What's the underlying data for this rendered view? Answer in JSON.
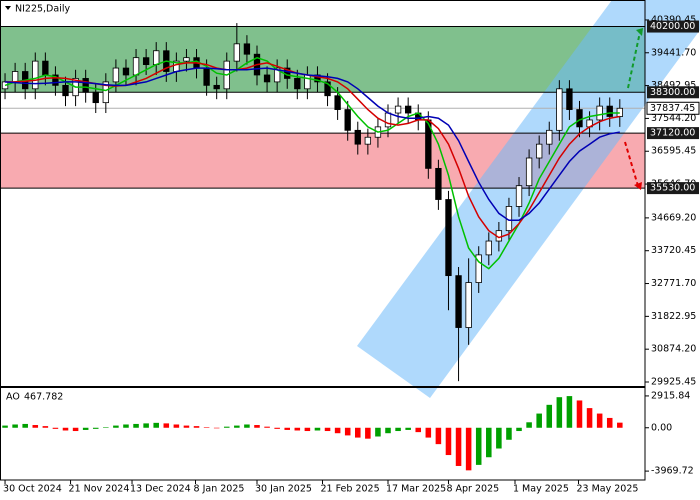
{
  "chart_data": {
    "type": "candlestick",
    "title": "NI225,Daily",
    "open": [
      38400,
      38600,
      38900,
      38400,
      39200,
      38800,
      38500,
      38200,
      38700,
      38300,
      38000,
      38600,
      39000,
      38800,
      39300,
      39100,
      39500,
      38900,
      39200,
      39300,
      39000,
      38500,
      38400,
      39200,
      39700,
      39400,
      38800,
      38600,
      39000,
      38700,
      38400,
      38800,
      38600,
      38200,
      37800,
      37200,
      36800,
      37000,
      37300,
      37700,
      37900,
      37700,
      37500,
      36100,
      35200,
      33000,
      31500,
      32800,
      33600,
      34000,
      34300,
      35000,
      35600,
      36400,
      36800,
      37200,
      38400,
      37800,
      37300,
      37500,
      37900,
      37600
    ],
    "high": [
      38850,
      39150,
      39150,
      39450,
      39450,
      39050,
      38750,
      38950,
      38950,
      38550,
      38850,
      39250,
      39250,
      39550,
      39550,
      39750,
      39750,
      39450,
      39550,
      39550,
      39250,
      38750,
      39450,
      40300,
      39950,
      39650,
      39050,
      39250,
      39250,
      38950,
      39050,
      39050,
      38850,
      38450,
      38050,
      37450,
      37250,
      37550,
      37950,
      38150,
      38150,
      37950,
      37750,
      36350,
      35450,
      33250,
      33500,
      33850,
      34250,
      34550,
      35250,
      35850,
      36650,
      37050,
      37450,
      38650,
      38650,
      38050,
      37750,
      38150,
      38150,
      38100
    ],
    "low": [
      38100,
      38300,
      38100,
      38100,
      38500,
      38200,
      37900,
      37900,
      38000,
      37700,
      37700,
      38300,
      38500,
      38500,
      38800,
      38800,
      38600,
      38600,
      38900,
      38700,
      38200,
      38100,
      38100,
      38900,
      39100,
      38500,
      38300,
      38300,
      38400,
      38100,
      38100,
      38300,
      37900,
      37500,
      36900,
      36500,
      36500,
      36700,
      37000,
      37400,
      37400,
      37200,
      35800,
      34900,
      32000,
      29950,
      31000,
      32500,
      33300,
      33700,
      34000,
      34700,
      35300,
      36100,
      36500,
      36900,
      37500,
      37000,
      37000,
      37200,
      37300,
      37300
    ],
    "close": [
      38600,
      38900,
      38400,
      39200,
      38800,
      38500,
      38200,
      38700,
      38300,
      38000,
      38600,
      39000,
      38800,
      39300,
      39100,
      39500,
      38900,
      39200,
      39300,
      39000,
      38500,
      38400,
      39200,
      39700,
      39400,
      38800,
      38600,
      39000,
      38700,
      38400,
      38800,
      38600,
      38200,
      37800,
      37200,
      36800,
      37000,
      37300,
      37700,
      37900,
      37700,
      37500,
      36100,
      35200,
      33000,
      31500,
      32800,
      33600,
      34000,
      34300,
      35000,
      35600,
      36400,
      36800,
      37200,
      38400,
      37800,
      37300,
      37500,
      37900,
      37600,
      37837.45
    ],
    "up_color": "#ffffff",
    "down_color": "#000000",
    "candle_color": "#000000",
    "series": [
      {
        "color": "#00c000",
        "values": [
          38500,
          38600,
          38650,
          38700,
          38800,
          38750,
          38600,
          38450,
          38450,
          38400,
          38350,
          38500,
          38650,
          38800,
          38950,
          39100,
          39200,
          39150,
          39150,
          39200,
          39050,
          38850,
          38800,
          38950,
          39150,
          39300,
          39200,
          38950,
          38800,
          38750,
          38700,
          38650,
          38550,
          38300,
          37950,
          37600,
          37300,
          37150,
          37200,
          37400,
          37600,
          37700,
          37400,
          36800,
          35900,
          34700,
          33800,
          33400,
          33200,
          33500,
          34000,
          34500,
          35100,
          35800,
          36300,
          36800,
          37300,
          37500,
          37600,
          37650,
          37700,
          37700
        ]
      },
      {
        "color": "#d40000",
        "values": [
          38600,
          38600,
          38620,
          38650,
          38700,
          38720,
          38700,
          38650,
          38600,
          38550,
          38500,
          38480,
          38500,
          38600,
          38700,
          38850,
          39000,
          39100,
          39150,
          39150,
          39100,
          39000,
          38950,
          38950,
          39000,
          39100,
          39150,
          39050,
          38950,
          38850,
          38800,
          38750,
          38700,
          38600,
          38400,
          38100,
          37800,
          37550,
          37400,
          37350,
          37400,
          37500,
          37500,
          37250,
          36800,
          36100,
          35300,
          34700,
          34300,
          34100,
          34200,
          34500,
          34900,
          35400,
          35900,
          36400,
          36800,
          37100,
          37300,
          37450,
          37550,
          37600
        ]
      },
      {
        "color": "#0000b4",
        "values": [
          38600,
          38580,
          38560,
          38550,
          38560,
          38580,
          38600,
          38600,
          38580,
          38550,
          38520,
          38500,
          38500,
          38550,
          38600,
          38700,
          38800,
          38900,
          38950,
          39000,
          39000,
          38980,
          38950,
          38950,
          38950,
          38980,
          39000,
          38950,
          38900,
          38850,
          38800,
          38780,
          38750,
          38700,
          38600,
          38400,
          38150,
          37900,
          37700,
          37600,
          37550,
          37550,
          37600,
          37550,
          37350,
          36900,
          36300,
          35700,
          35200,
          34800,
          34600,
          34600,
          34800,
          35100,
          35500,
          35900,
          36300,
          36600,
          36800,
          37000,
          37100,
          37150
        ]
      }
    ],
    "xlim": [
      -0.5,
      63.5
    ],
    "xticks": [
      {
        "value": 0,
        "label": "30 Oct 2024"
      },
      {
        "value": 6.5,
        "label": "21 Nov 2024"
      },
      {
        "value": 12.6,
        "label": "13 Dec 2024"
      },
      {
        "value": 18.9,
        "label": "8 Jan 2025"
      },
      {
        "value": 25,
        "label": "30 Jan 2025"
      },
      {
        "value": 31.5,
        "label": "21 Feb 2025"
      },
      {
        "value": 38,
        "label": "17 Mar 2025"
      },
      {
        "value": 44,
        "label": "8 Apr 2025"
      },
      {
        "value": 50.6,
        "label": "1 May 2025"
      },
      {
        "value": 56.9,
        "label": "23 May 2025"
      }
    ],
    "ylim": [
      29810,
      40967
    ],
    "yticks": [
      29925.45,
      {
        "value": 30874.2,
        "label": "30874.20"
      },
      31822.95,
      {
        "value": 32771.7,
        "label": "32771.70"
      },
      33720.45,
      {
        "value": 34669.2,
        "label": "34669.20"
      },
      {
        "value": 35646.7,
        "label": "35646.70"
      },
      36595.45,
      {
        "value": 37544.2,
        "label": "37544.20"
      },
      38492.95,
      {
        "value": 39441.7,
        "label": "39441.70"
      },
      40390.45
    ],
    "levels": [
      {
        "value": 40200,
        "label": "40200.00"
      },
      {
        "value": 38300,
        "label": "38300.00"
      },
      {
        "value": 37120,
        "label": "37120.00"
      },
      {
        "value": 35530,
        "label": "35530.00"
      }
    ],
    "last_price": {
      "value": 37837.45,
      "label": "37837.45"
    },
    "zones": [
      {
        "from": 38300,
        "to": 40200,
        "color": "#80c08d"
      },
      {
        "from": 35530,
        "to": 37120,
        "color": "#f8aab0"
      }
    ],
    "ao": {
      "name": "AO",
      "up_color": "#00a000",
      "down_color": "#ff0000",
      "ylim": [
        -4785,
        3550
      ],
      "yticks": [
        2915.84,
        {
          "value": 0,
          "label": "0.00"
        },
        -3969.72
      ],
      "values": [
        200,
        300,
        350,
        250,
        150,
        -100,
        -250,
        -300,
        -200,
        -100,
        50,
        200,
        300,
        350,
        400,
        450,
        400,
        300,
        200,
        150,
        50,
        -50,
        100,
        200,
        300,
        250,
        100,
        -100,
        -200,
        -250,
        -300,
        -250,
        -300,
        -500,
        -700,
        -900,
        -1000,
        -800,
        -500,
        -300,
        -200,
        -400,
        -900,
        -1500,
        -2500,
        -3500,
        -3900,
        -3400,
        -2700,
        -1900,
        -1100,
        -300,
        500,
        1300,
        2100,
        2800,
        2900,
        2500,
        1800,
        1300,
        900,
        467.782
      ]
    }
  }
}
